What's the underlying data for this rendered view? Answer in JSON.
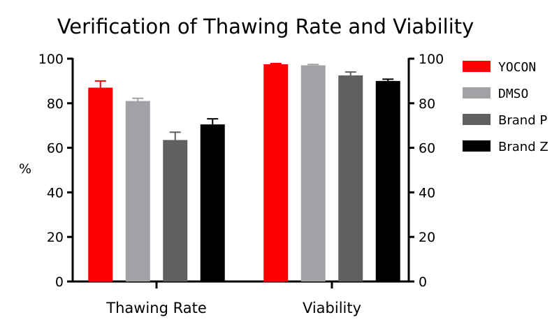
{
  "chart_data": {
    "type": "bar",
    "title": "Verification of Thawing Rate and Viability",
    "ylabel": "%",
    "ylim": [
      0,
      100
    ],
    "yticks": [
      "0",
      "20",
      "40",
      "60",
      "80",
      "100"
    ],
    "right_axis_ticks": [
      "0",
      "20",
      "40",
      "60",
      "80",
      "100"
    ],
    "categories": [
      "Thawing Rate",
      "Viability"
    ],
    "series": [
      {
        "name": "YOCON",
        "color": "#ff0000",
        "values": [
          87,
          97.5
        ],
        "errors": [
          3,
          0.3
        ]
      },
      {
        "name": "DMSO",
        "color": "#a2a2a6",
        "values": [
          81,
          97
        ],
        "errors": [
          1.2,
          0.4
        ]
      },
      {
        "name": "Brand P",
        "color": "#606060",
        "values": [
          63.5,
          92.5
        ],
        "errors": [
          3.5,
          1.5
        ]
      },
      {
        "name": "Brand Z",
        "color": "#000000",
        "values": [
          70.5,
          90
        ],
        "errors": [
          2.5,
          0.8
        ]
      }
    ],
    "legend_position": "right",
    "grid": false
  }
}
